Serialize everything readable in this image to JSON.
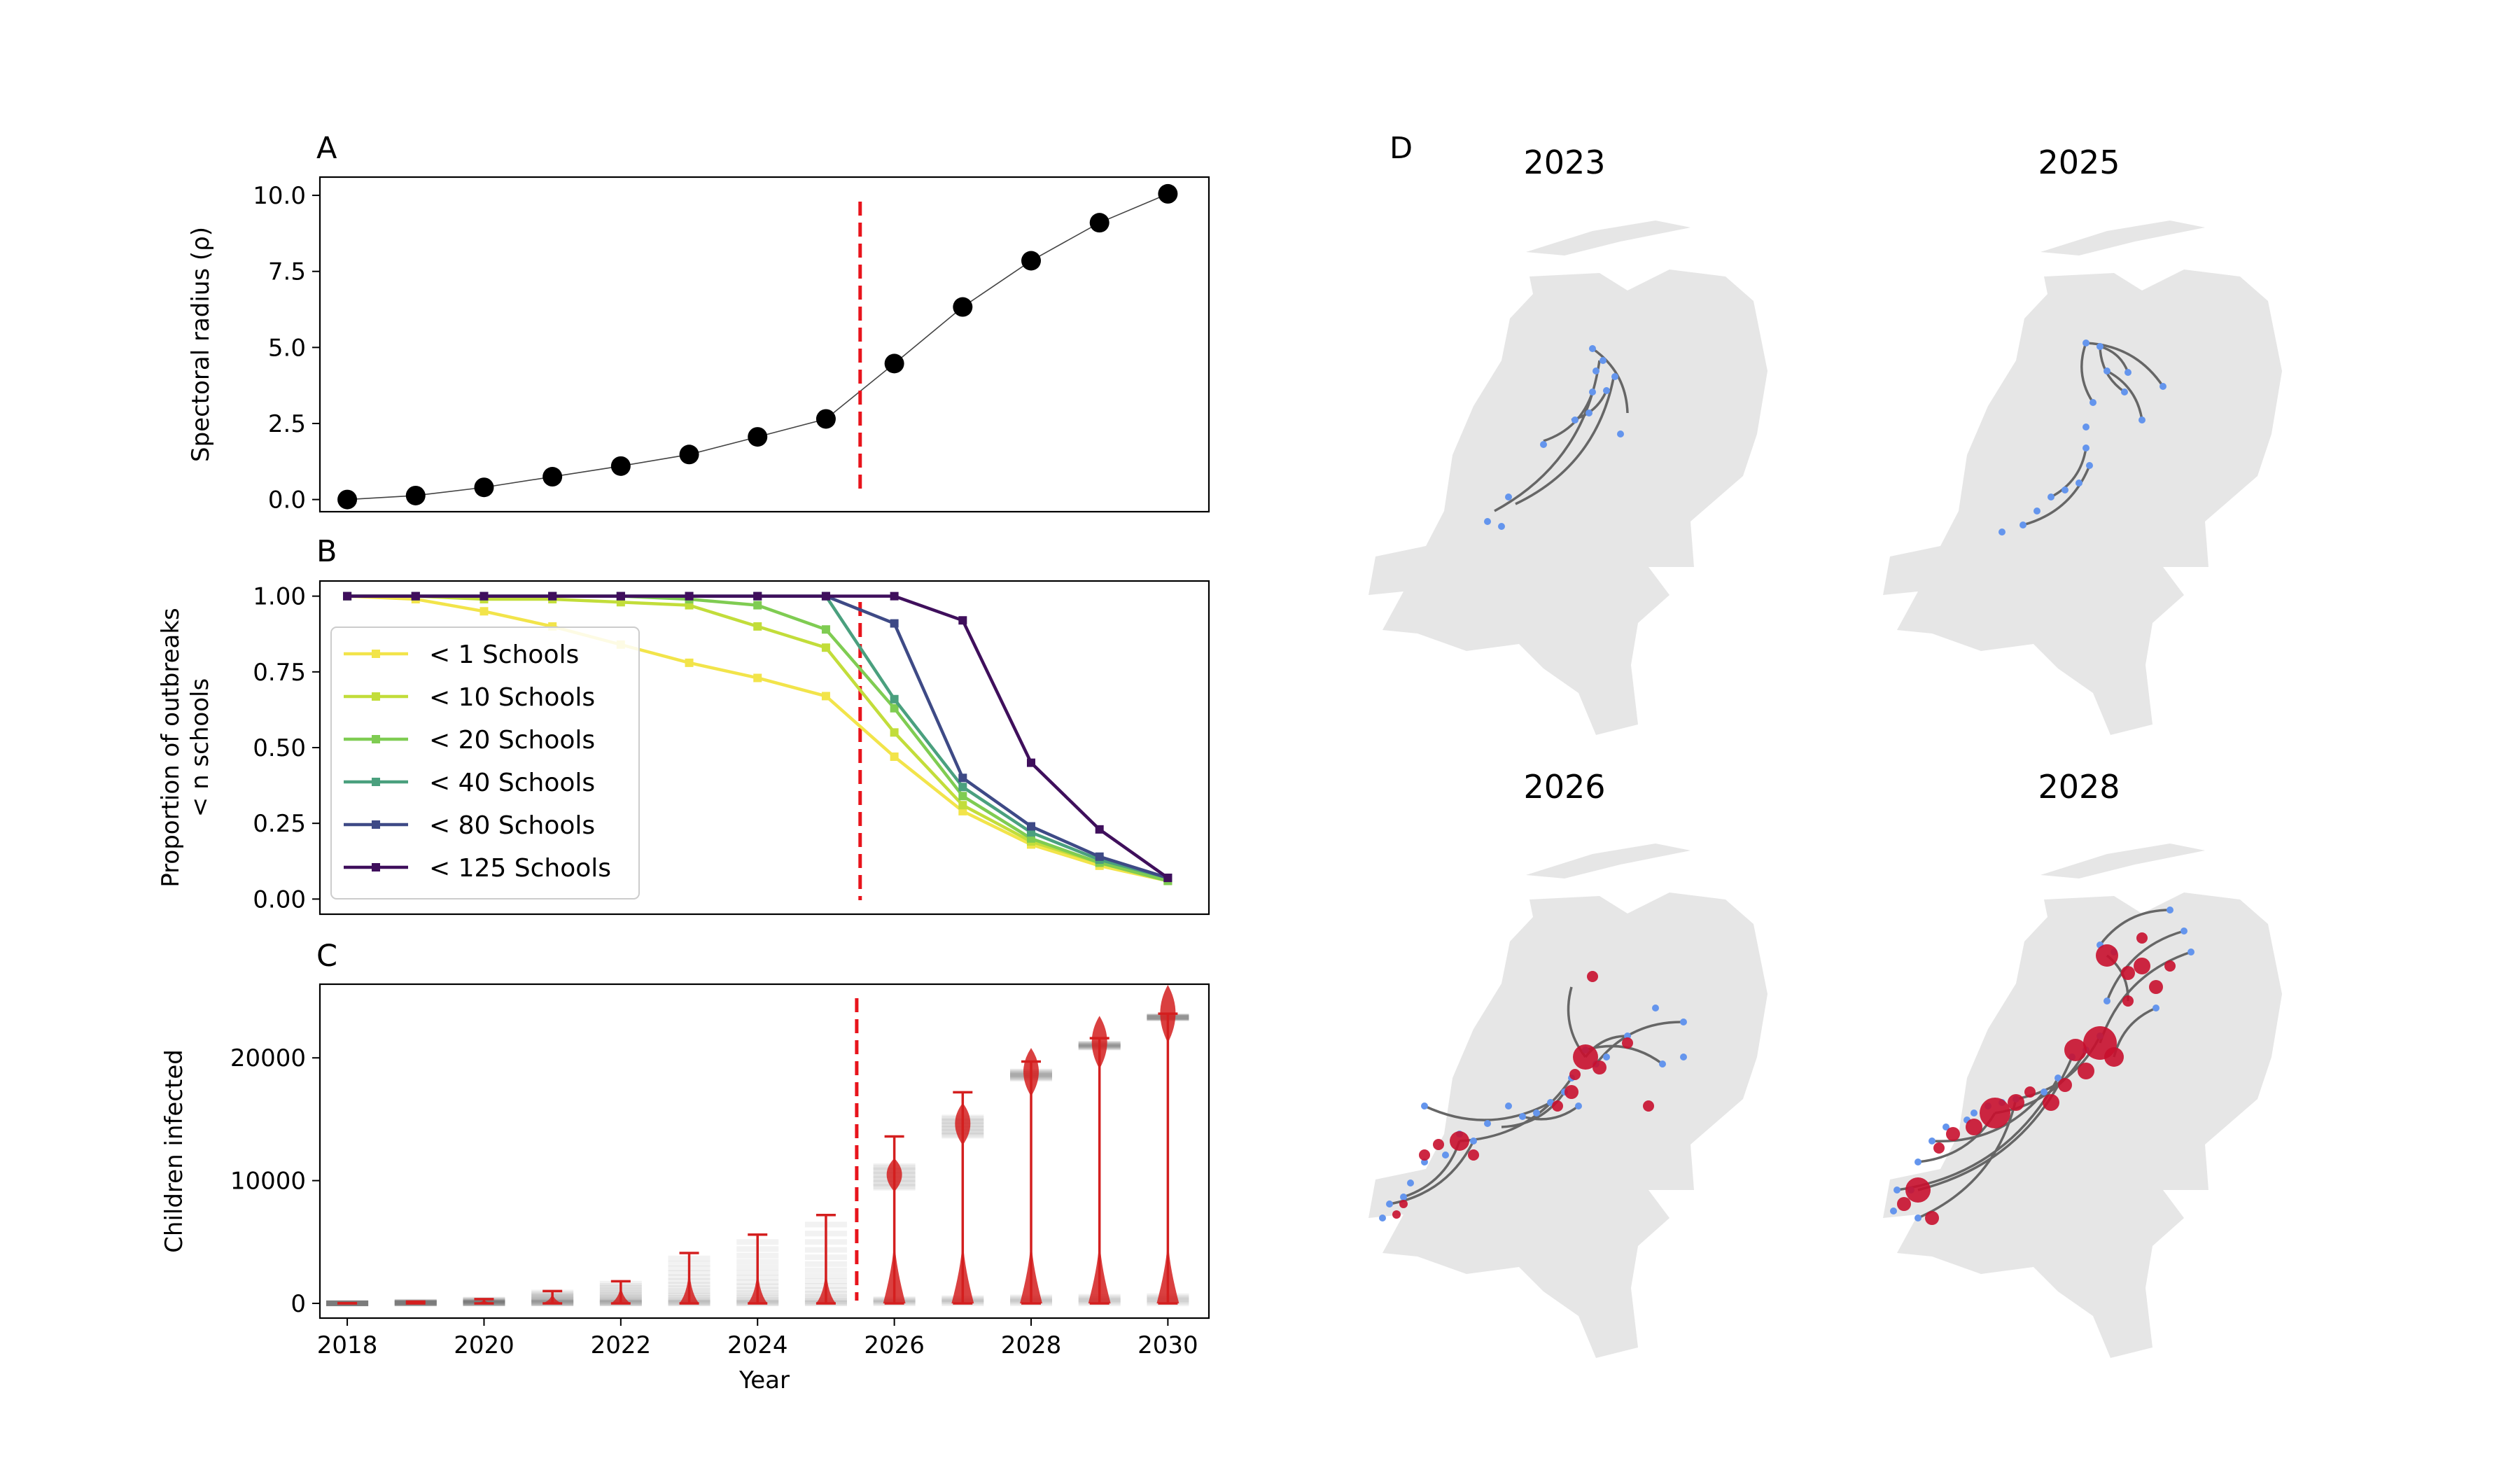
{
  "colors": {
    "marker": "#000000",
    "line": "#444444",
    "divider": "#e8141c",
    "violin": "#d41f1f",
    "map_land": "#e6e6e6",
    "map_edge": "#666666",
    "node_blue": "#6495ed",
    "node_red": "#c8102e"
  },
  "panels": {
    "a": "A",
    "b": "B",
    "c": "C",
    "d": "D"
  },
  "chart_data": [
    {
      "id": "A",
      "type": "line",
      "ylabel": "Spectoral radius (ρ)",
      "ylim": [
        -0.4,
        10.6
      ],
      "xlim": [
        2017.6,
        2030.6
      ],
      "yticks": [
        0.0,
        2.5,
        5.0,
        7.5,
        10.0
      ],
      "ytick_labels": [
        "0.0",
        "2.5",
        "5.0",
        "7.5",
        "10.0"
      ],
      "x": [
        2018,
        2019,
        2020,
        2021,
        2022,
        2023,
        2024,
        2025,
        2026,
        2027,
        2028,
        2029,
        2030
      ],
      "values": [
        0.0,
        0.13,
        0.4,
        0.75,
        1.1,
        1.48,
        2.06,
        2.65,
        4.47,
        6.33,
        7.85,
        9.1,
        10.05
      ],
      "divider_x": 2025.5,
      "grid": false
    },
    {
      "id": "B",
      "type": "line",
      "ylabel_lines": [
        "Proportion of outbreaks",
        "< n schools"
      ],
      "ylim": [
        -0.05,
        1.05
      ],
      "xlim": [
        2017.6,
        2030.6
      ],
      "yticks": [
        0.0,
        0.25,
        0.5,
        0.75,
        1.0
      ],
      "ytick_labels": [
        "0.00",
        "0.25",
        "0.50",
        "0.75",
        "1.00"
      ],
      "x": [
        2018,
        2019,
        2020,
        2021,
        2022,
        2023,
        2024,
        2025,
        2026,
        2027,
        2028,
        2029,
        2030
      ],
      "divider_x": 2025.5,
      "legend_position": "upper-left",
      "series": [
        {
          "name": "< 1 Schools",
          "color": "#f2e44a",
          "values": [
            1.0,
            0.99,
            0.95,
            0.9,
            0.84,
            0.78,
            0.73,
            0.67,
            0.47,
            0.29,
            0.18,
            0.11,
            0.06
          ]
        },
        {
          "name": "< 10 Schools",
          "color": "#c2dd3a",
          "values": [
            1.0,
            1.0,
            0.99,
            0.99,
            0.98,
            0.97,
            0.9,
            0.83,
            0.55,
            0.31,
            0.19,
            0.12,
            0.06
          ]
        },
        {
          "name": "< 20 Schools",
          "color": "#7fcc52",
          "values": [
            1.0,
            1.0,
            1.0,
            1.0,
            1.0,
            0.99,
            0.97,
            0.89,
            0.63,
            0.34,
            0.2,
            0.12,
            0.06
          ]
        },
        {
          "name": "< 40 Schools",
          "color": "#4aa07e",
          "values": [
            1.0,
            1.0,
            1.0,
            1.0,
            1.0,
            1.0,
            1.0,
            1.0,
            0.66,
            0.37,
            0.22,
            0.13,
            0.07
          ]
        },
        {
          "name": "< 80 Schools",
          "color": "#3e4a86",
          "values": [
            1.0,
            1.0,
            1.0,
            1.0,
            1.0,
            1.0,
            1.0,
            1.0,
            0.91,
            0.4,
            0.24,
            0.14,
            0.07
          ]
        },
        {
          "name": "< 125 Schools",
          "color": "#3f0f5c",
          "values": [
            1.0,
            1.0,
            1.0,
            1.0,
            1.0,
            1.0,
            1.0,
            1.0,
            1.0,
            0.92,
            0.45,
            0.23,
            0.07
          ]
        }
      ]
    },
    {
      "id": "C",
      "type": "violin",
      "xlabel": "Year",
      "ylabel": "Children infected",
      "ylim": [
        -1200,
        26000
      ],
      "xlim": [
        2017.6,
        2030.6
      ],
      "yticks": [
        0,
        10000,
        20000
      ],
      "ytick_labels": [
        "0",
        "10000",
        "20000"
      ],
      "xticks": [
        2018,
        2020,
        2022,
        2024,
        2026,
        2028,
        2030
      ],
      "xtick_labels": [
        "2018",
        "2020",
        "2022",
        "2024",
        "2026",
        "2028",
        "2030"
      ],
      "divider_x": 2025.45,
      "x": [
        2018,
        2019,
        2020,
        2021,
        2022,
        2023,
        2024,
        2025,
        2026,
        2027,
        2028,
        2029,
        2030
      ],
      "max": [
        20,
        150,
        350,
        1000,
        1800,
        4100,
        5600,
        7200,
        13600,
        17200,
        19700,
        21600,
        23600
      ],
      "mode": [
        0,
        0,
        0,
        0,
        0,
        0,
        0,
        0,
        10300,
        14400,
        18600,
        21000,
        23300
      ],
      "median": [
        0,
        100,
        150,
        200,
        200,
        300,
        400,
        600,
        9800,
        14500,
        18300,
        21000,
        23000
      ]
    }
  ],
  "maps": [
    {
      "title": "2023",
      "red_nodes": 0
    },
    {
      "title": "2025",
      "red_nodes": 0
    },
    {
      "title": "2026",
      "red_nodes": 14
    },
    {
      "title": "2028",
      "red_nodes": 22
    }
  ]
}
